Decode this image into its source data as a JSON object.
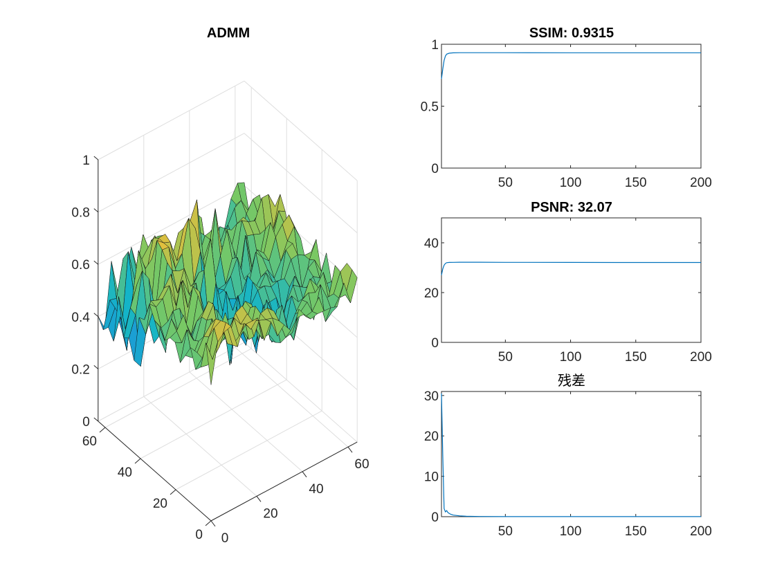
{
  "chart_data": [
    {
      "type": "surface",
      "title": "ADMM",
      "z_ticks": [
        "0",
        "0.2",
        "0.4",
        "0.6",
        "0.8",
        "1"
      ],
      "y_ticks": [
        "0",
        "20",
        "40",
        "60"
      ],
      "x_ticks": [
        "0",
        "20",
        "40",
        "60"
      ],
      "zlim": [
        0,
        1
      ],
      "xlim": [
        0,
        64
      ],
      "ylim": [
        0,
        64
      ],
      "grid": true,
      "colormap": "parula"
    },
    {
      "type": "line",
      "title": "SSIM: 0.9315",
      "xlim": [
        1,
        200
      ],
      "ylim": [
        0,
        1
      ],
      "x_ticks": [
        "50",
        "100",
        "150",
        "200"
      ],
      "y_ticks": [
        "0",
        "0.5",
        "1"
      ],
      "series": [
        {
          "x": [
            1,
            2,
            3,
            4,
            5,
            7,
            10,
            15,
            20,
            30,
            50,
            100,
            150,
            200
          ],
          "y": [
            0.72,
            0.8,
            0.87,
            0.905,
            0.92,
            0.928,
            0.931,
            0.932,
            0.932,
            0.932,
            0.932,
            0.9315,
            0.9315,
            0.9315
          ]
        }
      ]
    },
    {
      "type": "line",
      "title": "PSNR: 32.07",
      "xlim": [
        1,
        200
      ],
      "ylim": [
        0,
        50
      ],
      "x_ticks": [
        "50",
        "100",
        "150",
        "200"
      ],
      "y_ticks": [
        "0",
        "20",
        "40"
      ],
      "series": [
        {
          "x": [
            1,
            2,
            3,
            4,
            5,
            7,
            10,
            15,
            20,
            30,
            50,
            100,
            150,
            200
          ],
          "y": [
            27.0,
            29.5,
            31.0,
            31.7,
            32.0,
            32.1,
            32.15,
            32.2,
            32.2,
            32.2,
            32.15,
            32.1,
            32.08,
            32.07
          ]
        }
      ]
    },
    {
      "type": "line",
      "title": "残差",
      "xlim": [
        1,
        200
      ],
      "ylim": [
        0,
        31
      ],
      "x_ticks": [
        "50",
        "100",
        "150",
        "200"
      ],
      "y_ticks": [
        "0",
        "10",
        "20",
        "30"
      ],
      "series": [
        {
          "x": [
            1,
            2,
            3,
            4,
            5,
            6,
            8,
            10,
            15,
            20,
            30,
            50,
            100,
            150,
            200
          ],
          "y": [
            30.5,
            15,
            2.0,
            1.2,
            1.5,
            1.0,
            0.6,
            0.4,
            0.2,
            0.1,
            0.05,
            0.02,
            0.01,
            0.01,
            0.01
          ]
        }
      ]
    }
  ]
}
